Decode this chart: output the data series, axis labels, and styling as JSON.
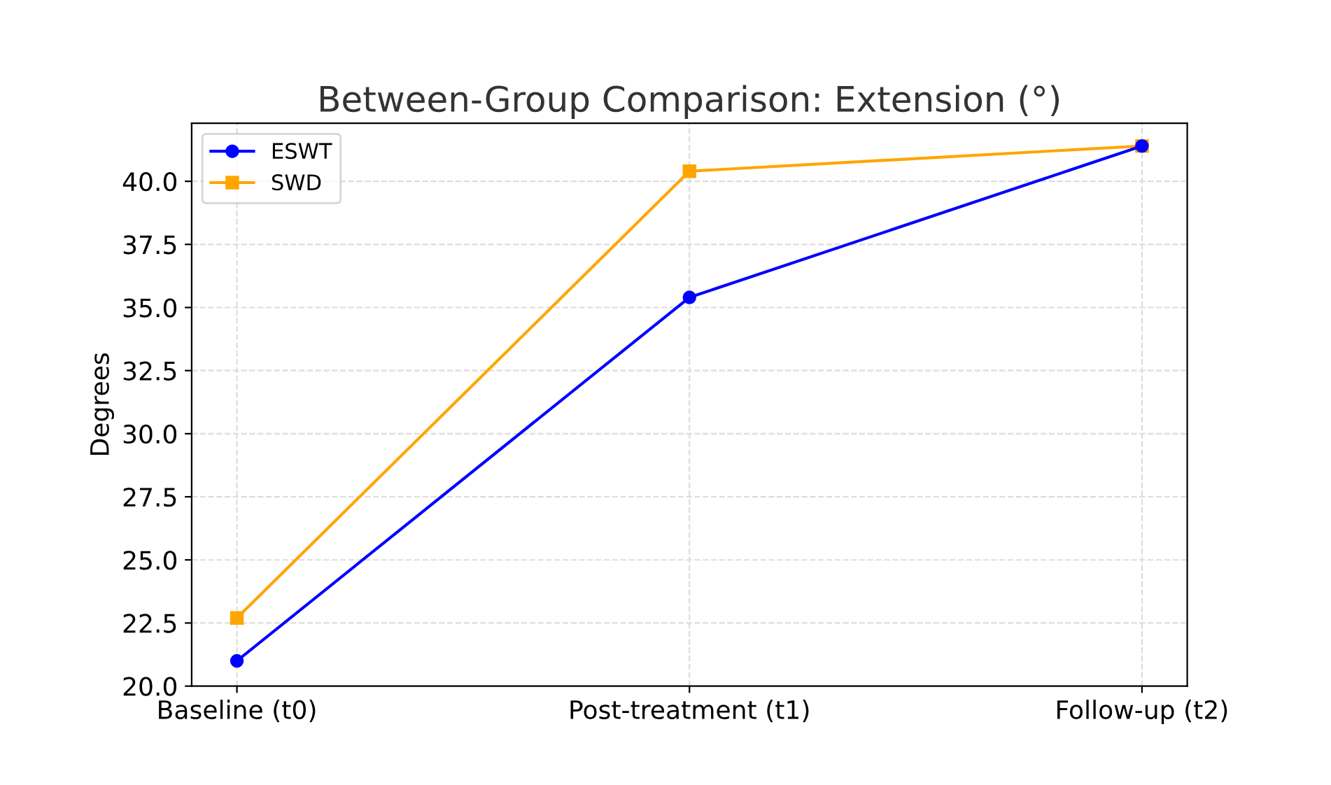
{
  "chart_data": {
    "type": "line",
    "title": "Between-Group Comparison: Extension (°)",
    "ylabel": "Degrees",
    "categories": [
      "Baseline (t0)",
      "Post-treatment (t1)",
      "Follow-up (t2)"
    ],
    "series": [
      {
        "name": "ESWT",
        "color": "#0000ff",
        "marker": "circle",
        "values": [
          21.0,
          35.4,
          41.4
        ]
      },
      {
        "name": "SWD",
        "color": "#ffa500",
        "marker": "square",
        "values": [
          22.7,
          40.4,
          41.4
        ]
      }
    ],
    "ylim": [
      20.0,
      42.3
    ],
    "yticks": [
      {
        "value": 20,
        "label": "20.0"
      },
      {
        "value": 22.5,
        "label": "22.5"
      },
      {
        "value": 25,
        "label": "25.0"
      },
      {
        "value": 27.5,
        "label": "27.5"
      },
      {
        "value": 30,
        "label": "30.0"
      },
      {
        "value": 32.5,
        "label": "32.5"
      },
      {
        "value": 35,
        "label": "35.0"
      },
      {
        "value": 37.5,
        "label": "37.5"
      },
      {
        "value": 40,
        "label": "40.0"
      }
    ],
    "grid": true,
    "legend": "top left",
    "line_style": "solid"
  }
}
